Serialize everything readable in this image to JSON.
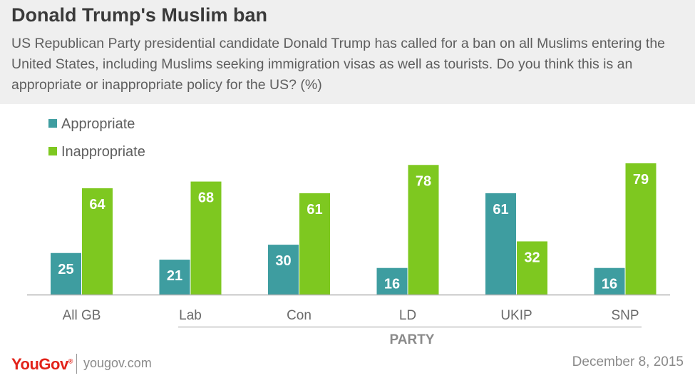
{
  "header": {
    "title": "Donald Trump's Muslim ban",
    "subtitle": "US Republican Party presidential candidate Donald Trump has called for a ban on all Muslims entering the United States, including Muslims seeking immigration visas as well as tourists. Do you think this is an appropriate or inappropriate policy for the US? (%)"
  },
  "colors": {
    "appropriate": "#3e9da0",
    "inappropriate": "#7ec820",
    "axis": "#b3b3b3",
    "tick_text": "#6a6a6a"
  },
  "chart_data": {
    "type": "bar",
    "title": "Donald Trump's Muslim ban",
    "xlabel": "PARTY",
    "ylabel": "",
    "ylim": [
      0,
      100
    ],
    "grid": false,
    "legend_position": "top-left",
    "categories": [
      "All GB",
      "Lab",
      "Con",
      "LD",
      "UKIP",
      "SNP"
    ],
    "series": [
      {
        "name": "Appropriate",
        "values": [
          25,
          21,
          30,
          16,
          61,
          16
        ]
      },
      {
        "name": "Inappropriate",
        "values": [
          64,
          68,
          61,
          78,
          32,
          79
        ]
      }
    ]
  },
  "footer": {
    "brand": "YouGov",
    "website": "yougov.com",
    "date": "December 8, 2015"
  }
}
